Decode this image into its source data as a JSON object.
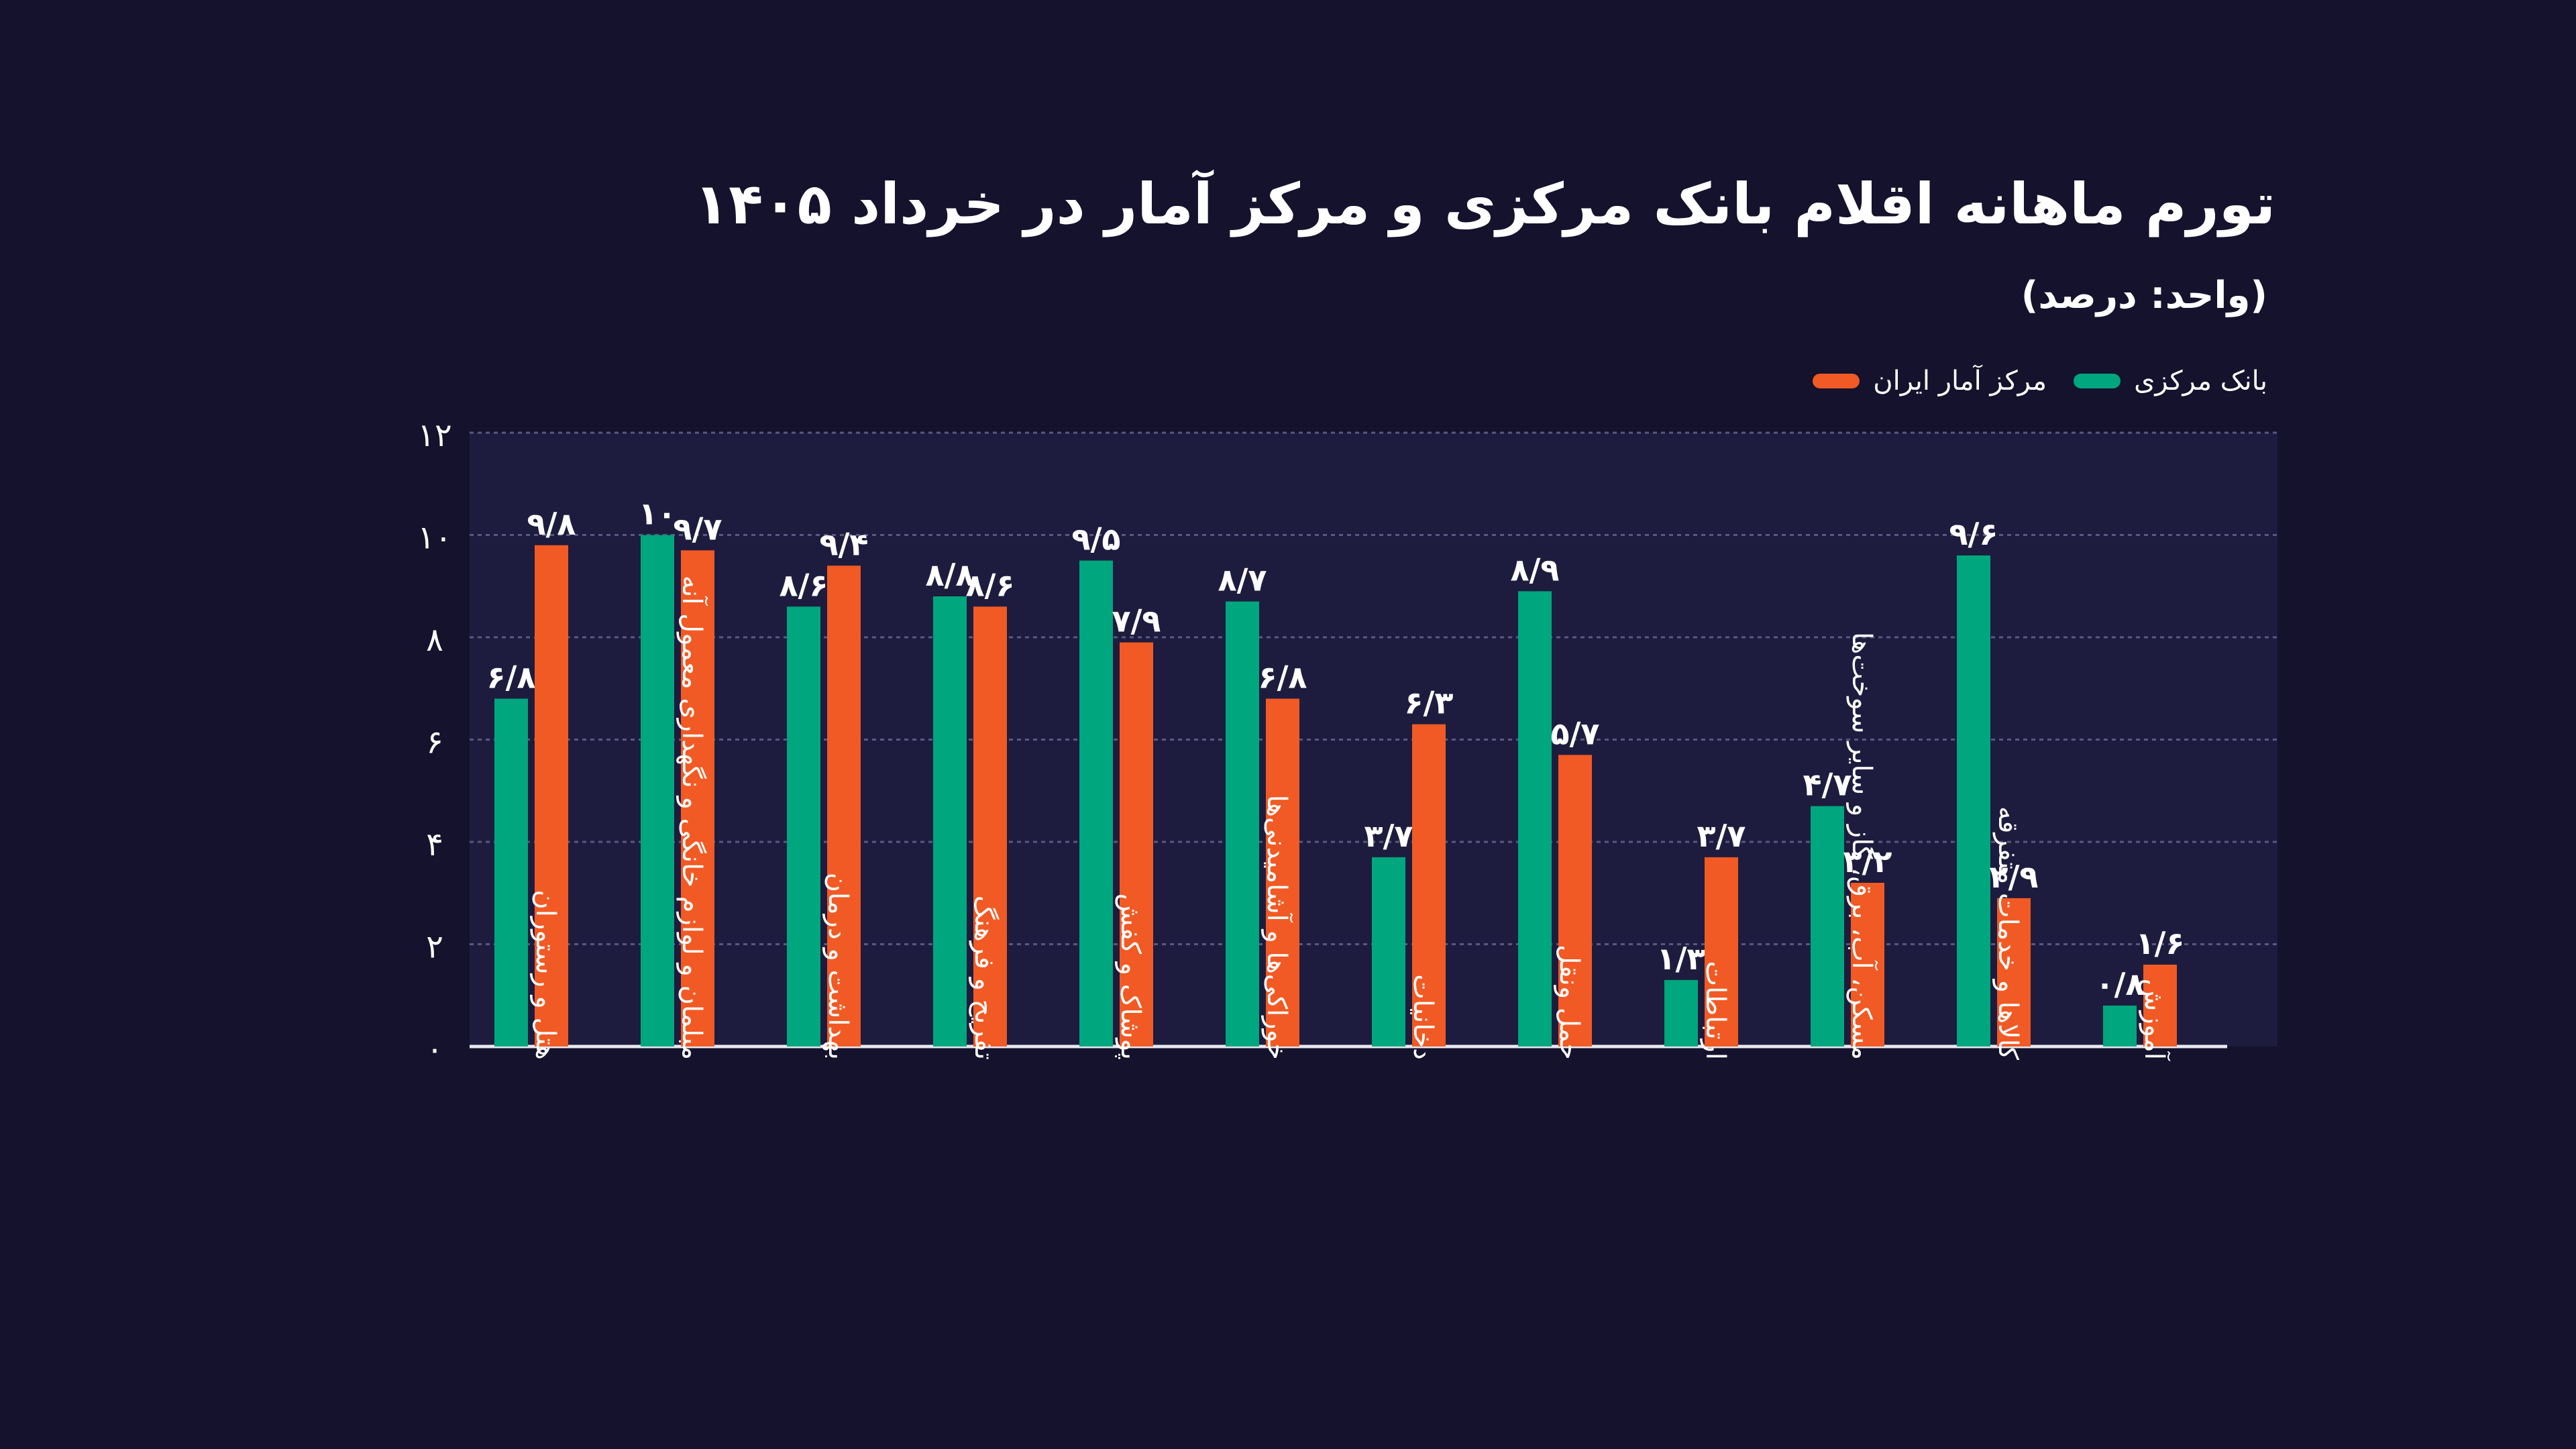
{
  "title": "تورم ماهانه اقلام بانک مرکزی و مرکز آمار در خرداد ۱۴۰۵",
  "subtitle": "(واحد: درصد)",
  "colors": {
    "background": "#14122c",
    "plot_bg": "#1e1c3e",
    "green": "#00a67e",
    "orange": "#f15a24",
    "grid": "#5a5880",
    "text": "#ffffff"
  },
  "legend": {
    "orange_label": "مرکز آمار ایران",
    "green_label": "بانک مرکزی"
  },
  "chart_data": {
    "type": "bar",
    "ylim": [
      0,
      12
    ],
    "yticks": [
      0,
      2,
      4,
      6,
      8,
      10,
      12
    ],
    "ytick_labels": [
      "۰",
      "۲",
      "۴",
      "۶",
      "۸",
      "۱۰",
      "۱۲"
    ],
    "grid": true,
    "legend_position": "top-right",
    "categories": [
      "هتل و رستوران",
      "مبلمان و لوازم خانگی و نگهداری معمول آنه",
      "بهداشت و درمان",
      "تفریح و فرهنگ",
      "پوشاک و کفش",
      "خوراکی‌ها و آشامیدنی‌ها",
      "دخانیات",
      "حمل ونقل",
      "ارتباطات",
      "مسکن، آب، برق، گاز و سایر سوخت‌ها",
      "کالاها و خدمات متفرقه",
      "آموزش"
    ],
    "series": [
      {
        "name": "بانک مرکزی",
        "color": "#00a67e",
        "values": [
          6.8,
          10,
          8.6,
          8.8,
          9.5,
          8.7,
          3.7,
          8.9,
          1.3,
          4.7,
          9.6,
          0.8
        ],
        "labels": [
          "۶/۸",
          "۱۰",
          "۸/۶",
          "۸/۸",
          "۹/۵",
          "۸/۷",
          "۳/۷",
          "۸/۹",
          "۱/۳",
          "۴/۷",
          "۹/۶",
          "۰/۸"
        ]
      },
      {
        "name": "مرکز آمار ایران",
        "color": "#f15a24",
        "values": [
          9.8,
          9.7,
          9.4,
          8.6,
          7.9,
          6.8,
          6.3,
          5.7,
          3.7,
          3.2,
          2.9,
          1.6
        ],
        "labels": [
          "۹/۸",
          "۹/۷",
          "۹/۴",
          "۸/۶",
          "۷/۹",
          "۶/۸",
          "۶/۳",
          "۵/۷",
          "۳/۷",
          "۳/۲",
          "۲/۹",
          "۱/۶"
        ]
      }
    ]
  }
}
